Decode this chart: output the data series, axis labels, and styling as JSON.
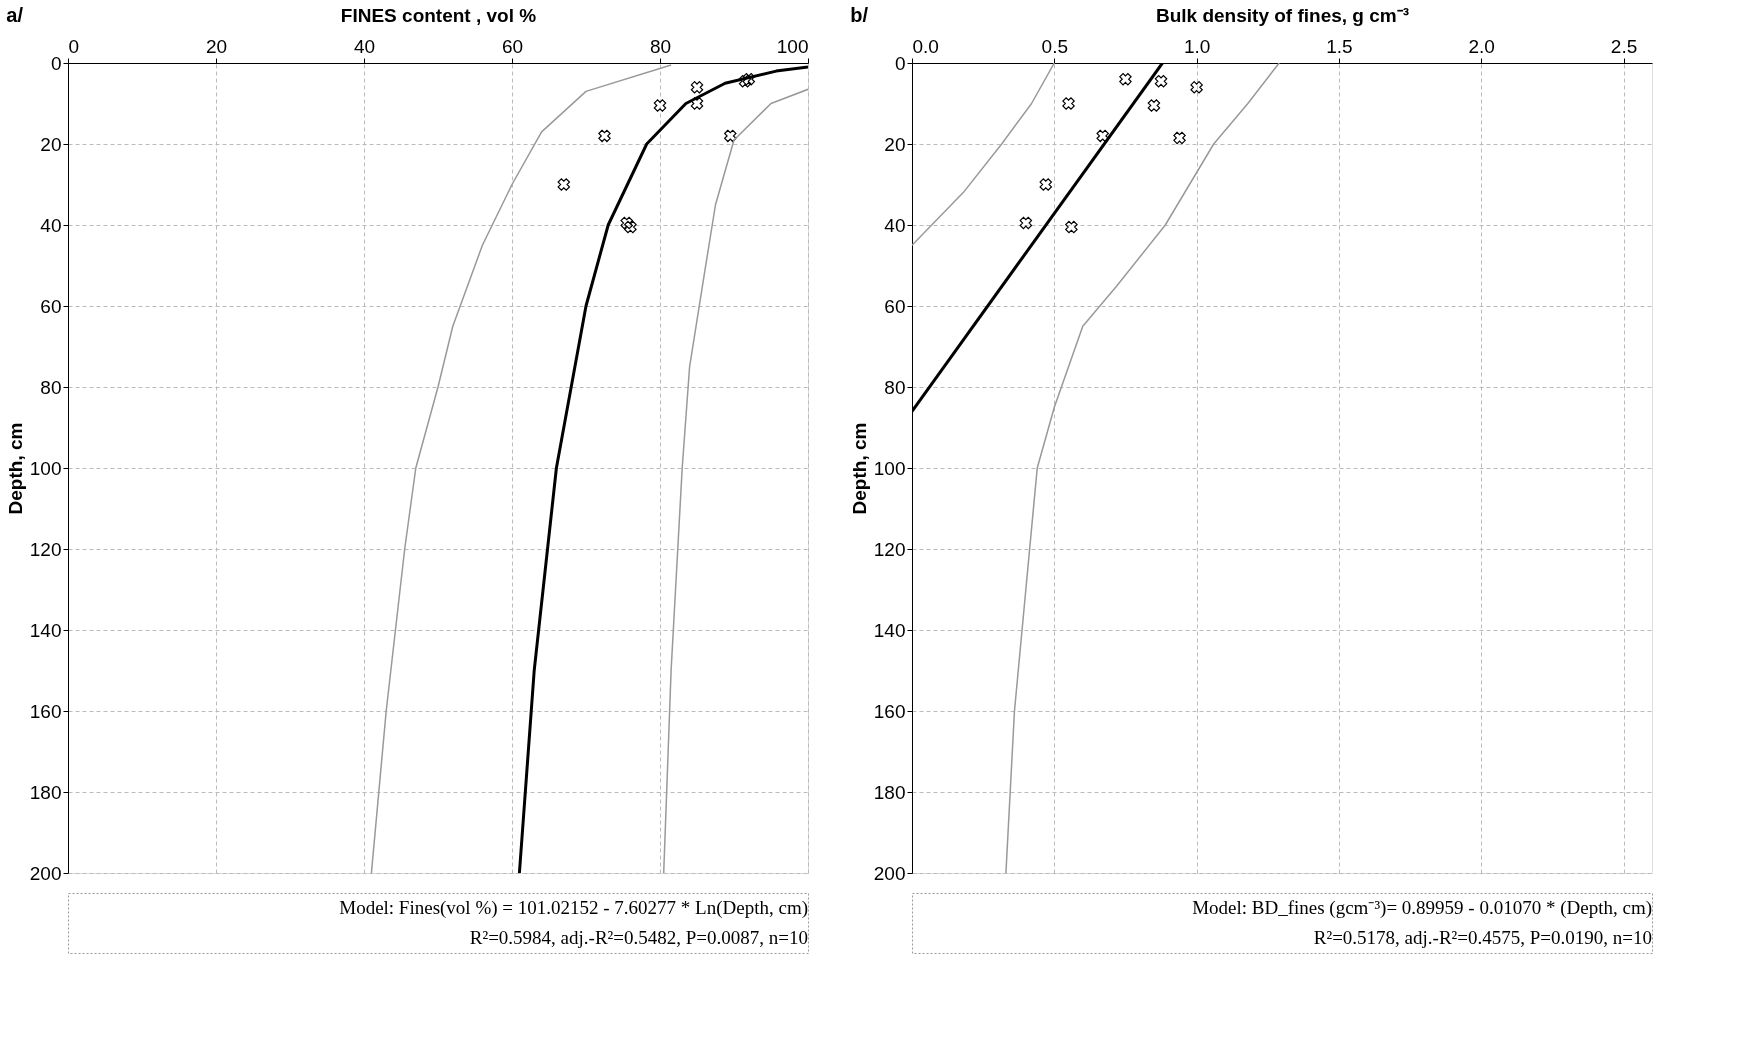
{
  "chart_data": [
    {
      "type": "scatter",
      "xlabel": "FINES content , vol %",
      "ylabel": "Depth, cm",
      "xlim": [
        0,
        100
      ],
      "xticks": [
        0,
        20,
        40,
        60,
        80,
        100
      ],
      "ylim": [
        200,
        0
      ],
      "yticks": [
        0,
        20,
        40,
        60,
        80,
        100,
        120,
        140,
        160,
        180,
        200
      ],
      "grid": true,
      "annotations": [
        "a/",
        "Model: Fines(vol %) = 101.02152 - 7.60277 * Ln(Depth, cm)",
        "R²=0.5984, adj.-R²=0.5482, P=0.0087, n=10"
      ],
      "series": [
        {
          "marker": "cross",
          "color": "#000000",
          "x": [
            85,
            91.5,
            92,
            80,
            85,
            72.5,
            89.5,
            67,
            75.5,
            76
          ],
          "values": [
            6,
            4.5,
            4,
            10.5,
            10,
            18,
            18,
            30,
            39.5,
            40.5
          ]
        },
        {
          "type": "line",
          "color": "#000000",
          "x": [
            100,
            95.7,
            88.8,
            83.5,
            78.2,
            73,
            70,
            66,
            63,
            61
          ],
          "values": [
            1,
            2,
            5,
            10,
            20,
            40,
            60,
            100,
            150,
            200
          ]
        },
        {
          "type": "line",
          "color": "#999999",
          "x": [
            81.5,
            70,
            64,
            60,
            56,
            52,
            50,
            47,
            45.5,
            43,
            41
          ],
          "values": [
            0.5,
            7,
            17,
            30,
            45,
            65,
            80,
            100,
            120,
            160,
            200
          ]
        },
        {
          "type": "line",
          "color": "#999999",
          "x": [
            100,
            95,
            90,
            87.5,
            86,
            84,
            83,
            81.5,
            80.5
          ],
          "values": [
            6.5,
            10,
            19,
            35,
            52,
            75,
            100,
            150,
            200
          ]
        }
      ]
    },
    {
      "type": "scatter",
      "xlabel": "Bulk density of fines, g cm⁻³",
      "ylabel": "Depth, cm",
      "xlim": [
        0,
        2.6
      ],
      "xticks": [
        {
          "value": 0,
          "label": "0.0"
        },
        0.5,
        {
          "value": 1,
          "label": "1.0"
        },
        1.5,
        {
          "value": 2,
          "label": "2.0"
        },
        2.5
      ],
      "ylim": [
        200,
        0
      ],
      "yticks": [
        0,
        20,
        40,
        60,
        80,
        100,
        120,
        140,
        160,
        180,
        200
      ],
      "grid": true,
      "annotations": [
        "b/",
        "Model: BD_fines (gcm⁻³)= 0.89959 - 0.01070 * (Depth, cm)",
        "R²=0.5178, adj.-R²=0.4575, P=0.0190, n=10"
      ],
      "series": [
        {
          "marker": "cross",
          "color": "#000000",
          "x": [
            0.75,
            0.875,
            1.0,
            0.55,
            0.85,
            0.67,
            0.94,
            0.47,
            0.4,
            0.56
          ],
          "values": [
            4,
            4.5,
            6,
            10,
            10.5,
            18,
            18.5,
            30,
            39.5,
            40.5
          ]
        },
        {
          "type": "line",
          "color": "#000000",
          "x": [
            0.88,
            0
          ],
          "values": [
            0,
            86
          ]
        },
        {
          "type": "line",
          "color": "#999999",
          "x": [
            0.5,
            0.42,
            0.315,
            0.18,
            0
          ],
          "values": [
            0,
            10,
            20,
            32,
            45
          ]
        },
        {
          "type": "line",
          "color": "#999999",
          "x": [
            1.29,
            1.18,
            1.06,
            0.89,
            0.72,
            0.6,
            0.5,
            0.44,
            0.4,
            0.36,
            0.33
          ],
          "values": [
            0,
            10,
            20,
            40,
            55,
            65,
            85,
            100,
            130,
            160,
            200
          ]
        }
      ]
    }
  ]
}
